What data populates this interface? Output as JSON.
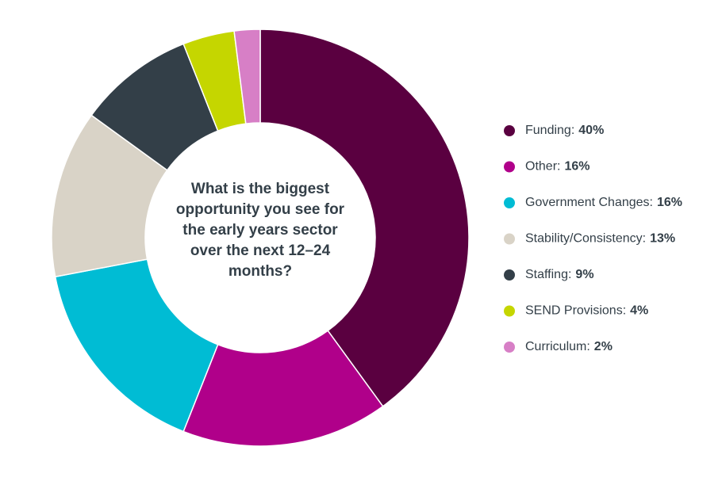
{
  "chart_data": {
    "type": "donut",
    "title": "What is the biggest opportunity you see for the early years sector over the next 12–24 months?",
    "categories": [
      "Funding:",
      "Other:",
      "Government Changes:",
      "Stability/Consistency:",
      "Staffing:",
      "SEND Provisions:",
      "Curriculum:"
    ],
    "values": [
      40,
      16,
      16,
      13,
      9,
      4,
      2
    ],
    "value_labels": [
      "40%",
      "16%",
      "16%",
      "13%",
      "9%",
      "4%",
      "2%"
    ],
    "colors": [
      "#5a0040",
      "#b0008a",
      "#00bcd4",
      "#d9d3c7",
      "#333f48",
      "#c5d600",
      "#d77fc6"
    ]
  }
}
